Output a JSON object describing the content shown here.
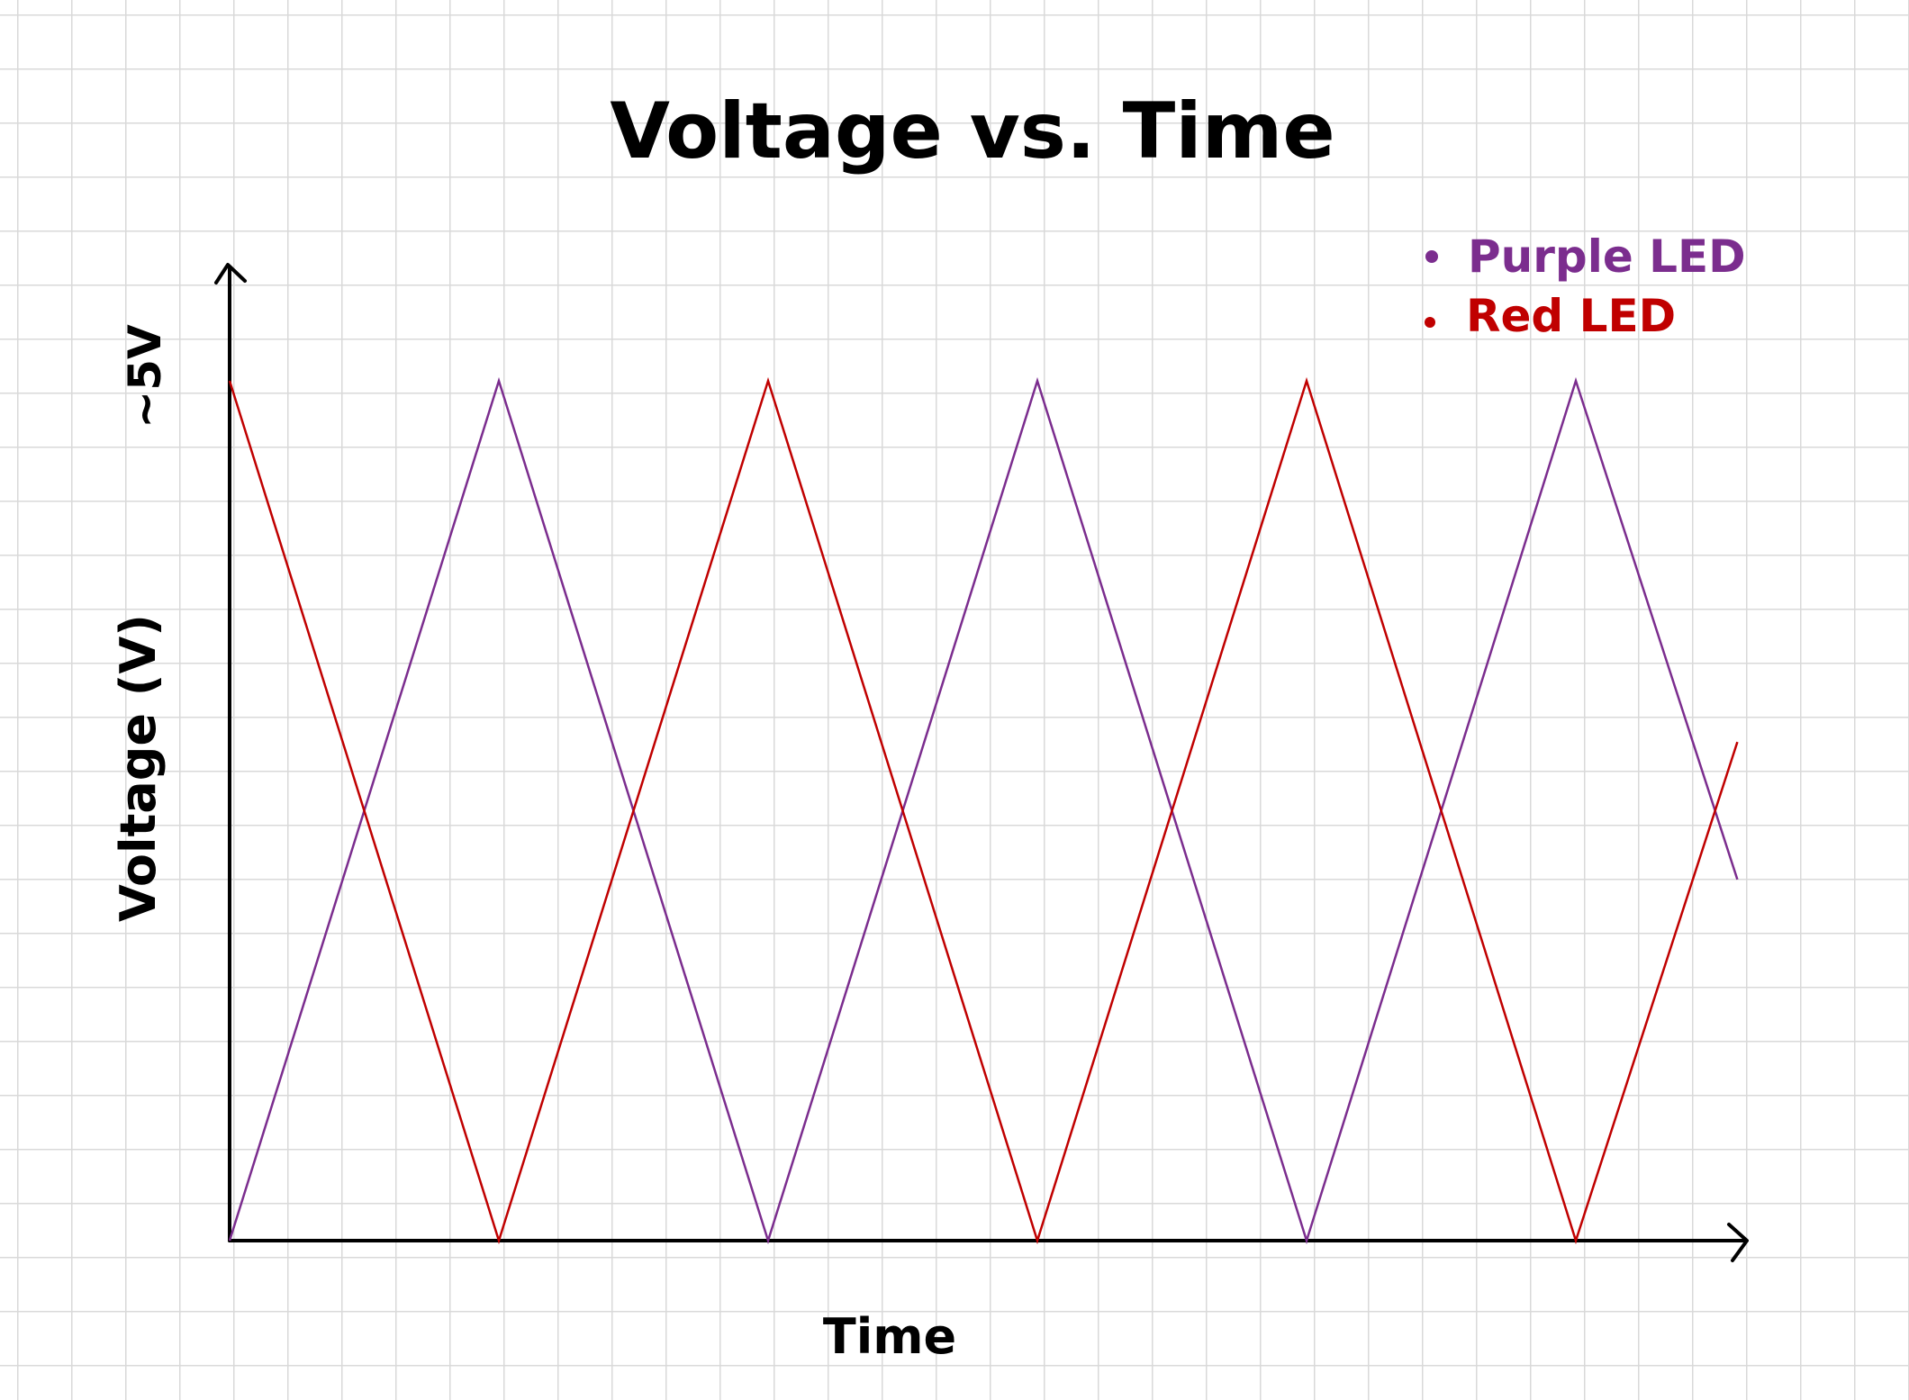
{
  "chart_data": {
    "type": "line",
    "title": "Voltage vs. Time",
    "xlabel": "Time",
    "ylabel": "Voltage (V)",
    "y_tick_labels": [
      "~5V"
    ],
    "ylim": [
      0,
      5
    ],
    "grid": true,
    "legend_position": "top-right",
    "series": [
      {
        "name": "Purple LED",
        "color": "#7b2d8e",
        "points": [
          [
            0,
            0
          ],
          [
            1,
            5
          ],
          [
            2,
            0
          ],
          [
            3,
            5
          ],
          [
            4,
            0
          ],
          [
            5,
            5
          ],
          [
            5.6,
            2.1
          ]
        ]
      },
      {
        "name": "Red LED",
        "color": "#c00000",
        "points": [
          [
            0,
            5
          ],
          [
            1,
            0
          ],
          [
            2,
            5
          ],
          [
            3,
            0
          ],
          [
            4,
            5
          ],
          [
            5,
            0
          ],
          [
            5.6,
            2.9
          ]
        ]
      }
    ]
  }
}
